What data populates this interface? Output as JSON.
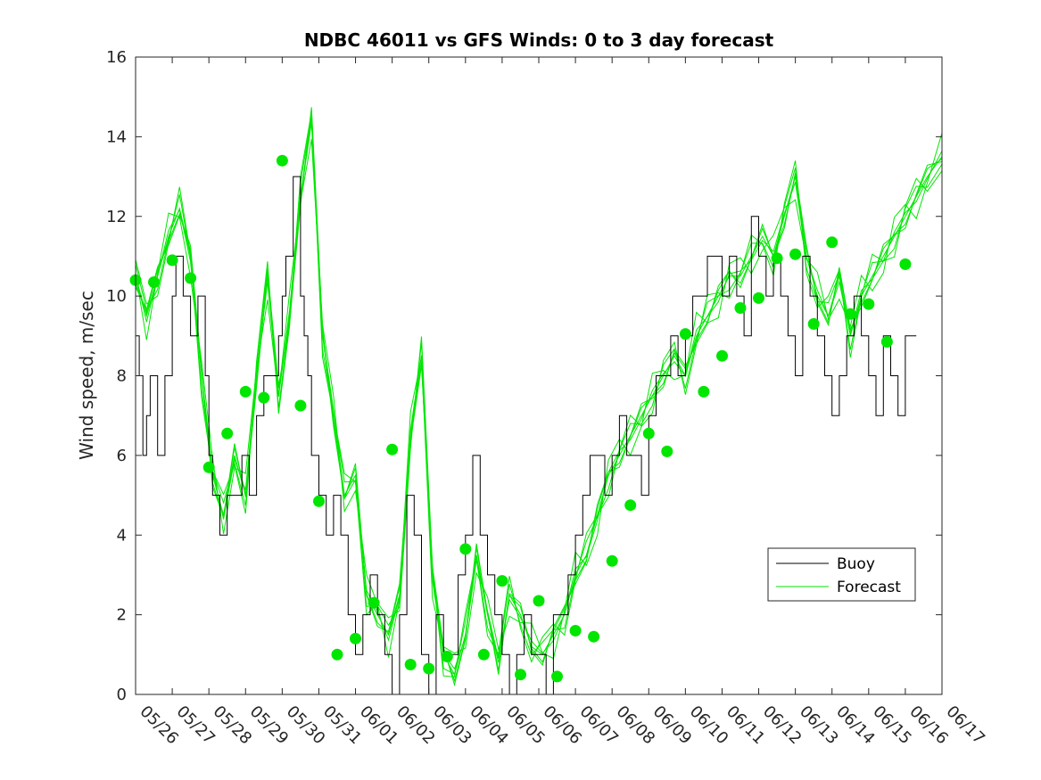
{
  "chart_data": {
    "type": "line",
    "title": "NDBC 46011 vs GFS Winds: 0 to 3 day forecast",
    "xlabel": "",
    "ylabel": "Wind speed, m/sec",
    "xlim": [
      "05/26",
      "06/17"
    ],
    "ylim": [
      0,
      16
    ],
    "yticks": [
      0,
      2,
      4,
      6,
      8,
      10,
      12,
      14,
      16
    ],
    "xticks": [
      "05/26",
      "05/27",
      "05/28",
      "05/29",
      "05/30",
      "05/31",
      "06/01",
      "06/02",
      "06/03",
      "06/04",
      "06/05",
      "06/06",
      "06/07",
      "06/08",
      "06/09",
      "06/10",
      "06/11",
      "06/12",
      "06/13",
      "06/14",
      "06/15",
      "06/16",
      "06/17"
    ],
    "grid": false,
    "legend_position": "lower-right",
    "colors": {
      "buoy": "#000000",
      "forecast": "#00e600"
    },
    "series": [
      {
        "name": "Buoy",
        "style": "line",
        "x_day": [
          0,
          0.1,
          0.2,
          0.3,
          0.4,
          0.6,
          0.8,
          1.0,
          1.1,
          1.3,
          1.5,
          1.7,
          1.9,
          2.0,
          2.1,
          2.3,
          2.5,
          2.7,
          2.9,
          3.1,
          3.3,
          3.5,
          3.7,
          3.9,
          4.0,
          4.1,
          4.3,
          4.5,
          4.6,
          4.7,
          4.8,
          5.0,
          5.2,
          5.4,
          5.6,
          5.8,
          6.0,
          6.2,
          6.4,
          6.6,
          6.8,
          7.0,
          7.2,
          7.4,
          7.6,
          7.8,
          8.0,
          8.2,
          8.4,
          8.6,
          8.8,
          9.0,
          9.2,
          9.4,
          9.6,
          9.8,
          10.0,
          10.2,
          10.4,
          10.6,
          10.8,
          11.0,
          11.2,
          11.4,
          11.6,
          11.8,
          12.0,
          12.2,
          12.4,
          12.6,
          12.8,
          13.0,
          13.2,
          13.4,
          13.6,
          13.8,
          14.0,
          14.2,
          14.4,
          14.6,
          14.8,
          15.0,
          15.2,
          15.4,
          15.6,
          15.8,
          16.0,
          16.2,
          16.4,
          16.6,
          16.8,
          17.0,
          17.2,
          17.4,
          17.6,
          17.8,
          18.0,
          18.2,
          18.4,
          18.6,
          18.8,
          19.0,
          19.2,
          19.4,
          19.6,
          19.8,
          20.0,
          20.2,
          20.4,
          20.6,
          20.8,
          21.0,
          21.3
        ],
        "values": [
          9,
          8,
          6,
          7,
          8,
          6,
          8,
          10,
          11,
          10,
          9,
          10,
          8,
          6,
          5,
          4,
          5,
          5,
          6,
          5,
          7,
          8,
          8,
          9,
          10,
          11,
          13,
          10,
          9,
          8,
          6,
          5,
          4,
          5,
          4,
          2,
          1,
          2,
          3,
          2,
          1,
          0,
          2,
          5,
          4,
          1,
          0,
          2,
          1,
          1,
          3,
          4,
          6,
          4,
          3,
          2,
          1,
          0,
          1,
          2,
          1,
          1,
          0,
          2,
          2,
          3,
          4,
          5,
          6,
          6,
          5,
          6,
          7,
          6,
          6,
          5,
          7,
          8,
          8,
          9,
          8,
          9,
          10,
          10,
          11,
          11,
          10,
          11,
          10,
          9,
          12,
          11,
          10,
          11,
          10,
          9,
          8,
          11,
          10,
          9,
          8,
          7,
          8,
          9,
          10,
          9,
          8,
          7,
          9,
          8,
          7,
          9,
          9
        ]
      },
      {
        "name": "Forecast",
        "style": "line",
        "x_day": [
          0,
          0.3,
          0.6,
          0.9,
          1.2,
          1.5,
          1.8,
          2.1,
          2.4,
          2.7,
          3.0,
          3.3,
          3.6,
          3.9,
          4.2,
          4.5,
          4.8,
          5.1,
          5.4,
          5.7,
          6.0,
          6.3,
          6.6,
          6.9,
          7.2,
          7.5,
          7.8,
          8.1,
          8.4,
          8.7,
          9.0,
          9.3,
          9.6,
          9.9,
          10.2,
          10.5,
          10.8,
          11.1,
          11.4,
          11.7,
          12.0,
          12.3,
          12.6,
          12.9,
          13.2,
          13.5,
          13.8,
          14.1,
          14.4,
          14.7,
          15.0,
          15.3,
          15.6,
          15.9,
          16.2,
          16.5,
          16.8,
          17.1,
          17.4,
          17.7,
          18.0,
          18.3,
          18.6,
          18.9,
          19.2,
          19.5,
          19.8,
          20.1,
          20.4,
          20.7,
          21.0,
          21.3,
          21.6,
          22.0
        ],
        "values": [
          10.5,
          9.5,
          10.5,
          11.5,
          12.2,
          11.0,
          8.0,
          5.5,
          4.5,
          6.0,
          5.0,
          8.0,
          10.5,
          7.5,
          9.5,
          12.5,
          14.5,
          9.0,
          7.0,
          5.0,
          5.5,
          2.5,
          2.0,
          1.5,
          2.5,
          6.5,
          8.5,
          3.0,
          1.0,
          0.5,
          1.5,
          3.5,
          2.0,
          0.8,
          2.5,
          2.0,
          1.2,
          1.0,
          1.5,
          2.0,
          3.0,
          3.5,
          4.5,
          5.5,
          6.0,
          6.5,
          7.0,
          7.5,
          8.0,
          8.5,
          8.0,
          9.0,
          9.5,
          10.0,
          10.5,
          10.5,
          11.0,
          11.5,
          11.0,
          12.0,
          13.0,
          11.0,
          10.0,
          9.5,
          10.5,
          9.0,
          10.0,
          10.5,
          11.0,
          11.5,
          12.0,
          12.5,
          13.0,
          13.5
        ]
      },
      {
        "name": "",
        "style": "markers",
        "x_day": [
          0,
          0.5,
          1.0,
          1.5,
          2.0,
          2.5,
          3.0,
          3.5,
          4.0,
          4.5,
          5.0,
          5.5,
          6.0,
          6.5,
          7.0,
          7.5,
          8.0,
          8.5,
          9.0,
          9.5,
          10.0,
          10.5,
          11.0,
          11.5,
          12.0,
          12.5,
          13.0,
          13.5,
          14.0,
          14.5,
          15.0,
          15.5,
          16.0,
          16.5,
          17.0,
          17.5,
          18.0,
          18.5,
          19.0,
          19.5,
          20.0,
          20.5,
          21.0
        ],
        "values": [
          10.4,
          10.35,
          10.9,
          10.45,
          5.7,
          6.55,
          7.6,
          7.45,
          13.4,
          7.25,
          4.85,
          1.0,
          1.4,
          2.3,
          6.15,
          0.75,
          0.65,
          0.95,
          3.65,
          1.0,
          2.85,
          0.5,
          2.35,
          0.45,
          1.6,
          1.45,
          3.35,
          4.75,
          6.55,
          6.1,
          9.05,
          7.6,
          8.5,
          9.7,
          9.95,
          10.95,
          11.05,
          9.3,
          11.35,
          9.55,
          9.8,
          8.85,
          10.8
        ]
      }
    ]
  }
}
